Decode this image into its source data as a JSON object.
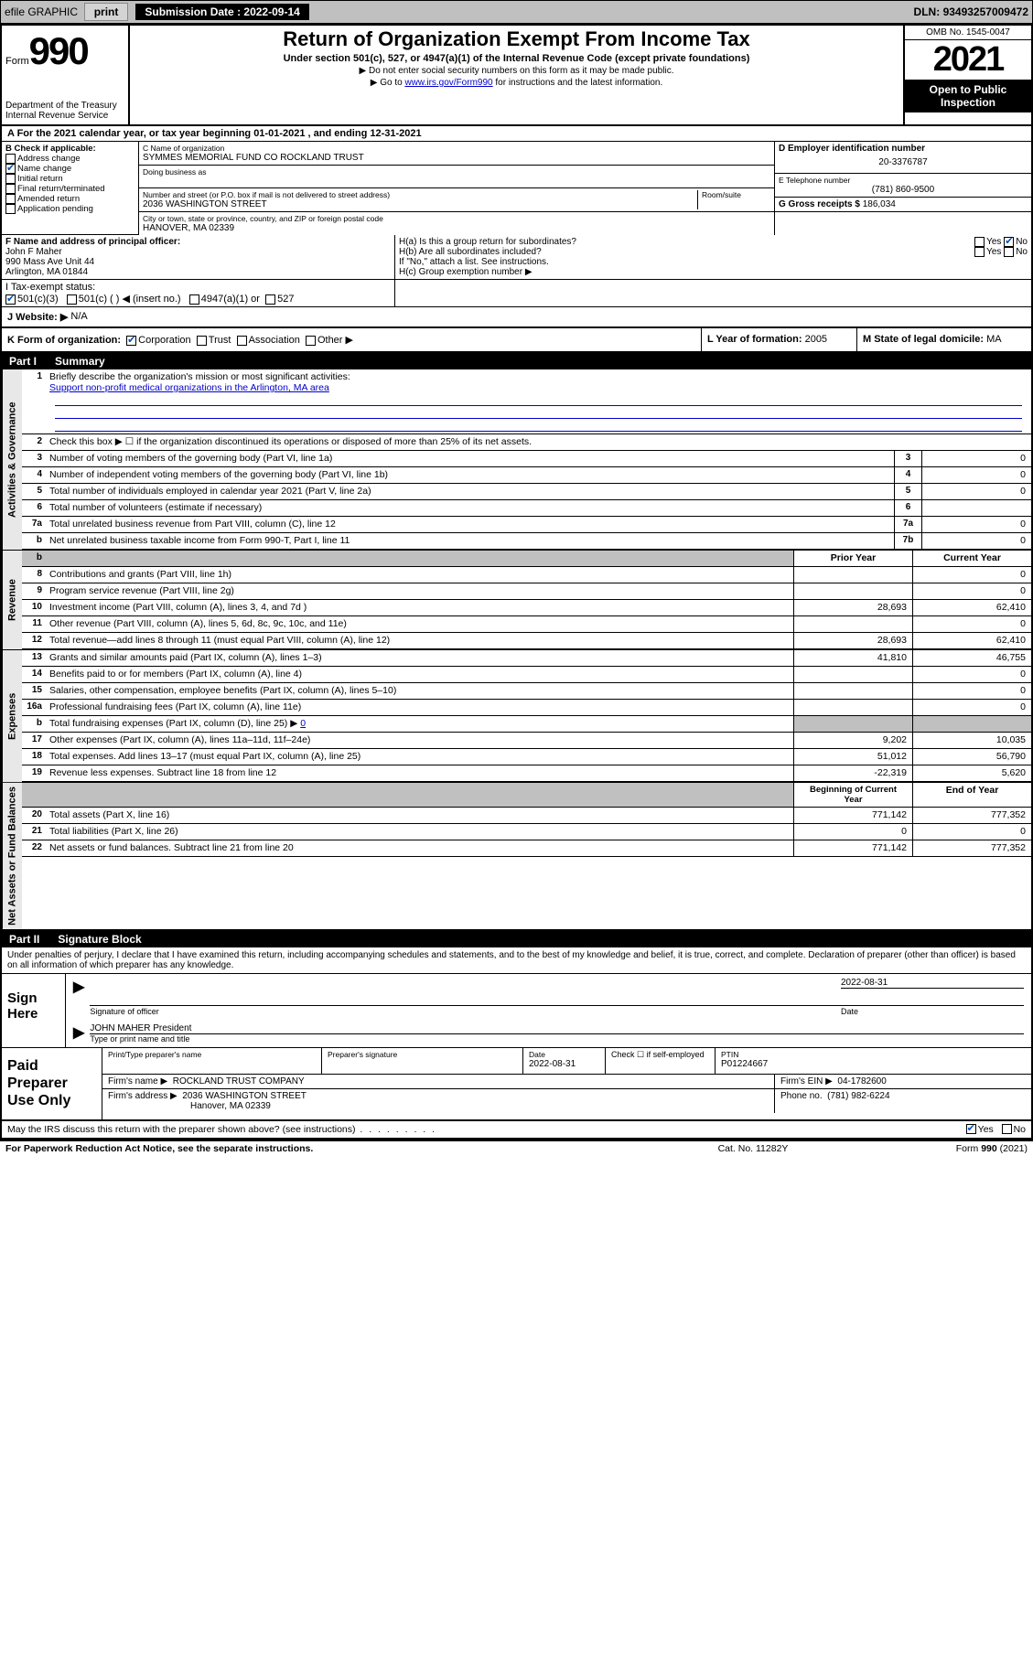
{
  "topbar": {
    "efile": "efile GRAPHIC",
    "print": "print",
    "sub_label": "Submission Date :",
    "sub_date": "2022-09-14",
    "dln_label": "DLN:",
    "dln": "93493257009472"
  },
  "header": {
    "form_word": "Form",
    "form_num": "990",
    "dept": "Department of the Treasury",
    "irs": "Internal Revenue Service",
    "title": "Return of Organization Exempt From Income Tax",
    "sub": "Under section 501(c), 527, or 4947(a)(1) of the Internal Revenue Code (except private foundations)",
    "note1": "▶ Do not enter social security numbers on this form as it may be made public.",
    "note2_pre": "▶ Go to ",
    "note2_link": "www.irs.gov/Form990",
    "note2_post": " for instructions and the latest information.",
    "omb": "OMB No. 1545-0047",
    "year": "2021",
    "open": "Open to Public Inspection"
  },
  "period": {
    "line": "A For the 2021 calendar year, or tax year beginning 01-01-2021   , and ending 12-31-2021"
  },
  "blockB": {
    "title": "B Check if applicable:",
    "addr": "Address change",
    "name": "Name change",
    "initial": "Initial return",
    "final": "Final return/terminated",
    "amended": "Amended return",
    "app": "Application pending"
  },
  "blockC": {
    "name_label": "C Name of organization",
    "name": "SYMMES MEMORIAL FUND CO ROCKLAND TRUST",
    "dba_label": "Doing business as",
    "street_label": "Number and street (or P.O. box if mail is not delivered to street address)",
    "room_label": "Room/suite",
    "street": "2036 WASHINGTON STREET",
    "city_label": "City or town, state or province, country, and ZIP or foreign postal code",
    "city": "HANOVER, MA  02339"
  },
  "blockD": {
    "ein_label": "D Employer identification number",
    "ein": "20-3376787",
    "phone_label": "E Telephone number",
    "phone": "(781) 860-9500",
    "gross_label": "G Gross receipts $",
    "gross": "186,034"
  },
  "blockF": {
    "label": "F  Name and address of principal officer:",
    "name": "John F Maher",
    "addr1": "990 Mass Ave Unit 44",
    "addr2": "Arlington, MA  01844"
  },
  "blockH": {
    "ha": "H(a)  Is this a group return for subordinates?",
    "hb": "H(b)  Are all subordinates included?",
    "hb_note": "If \"No,\" attach a list. See instructions.",
    "hc": "H(c)  Group exemption number ▶",
    "yes": "Yes",
    "no": "No"
  },
  "blockI": {
    "label": "I     Tax-exempt status:",
    "c3": "501(c)(3)",
    "c": "501(c) (  )",
    "insert": "◀ (insert no.)",
    "a4947": "4947(a)(1) or",
    "s527": "527"
  },
  "blockJ": {
    "label": "J    Website: ▶",
    "val": "N/A"
  },
  "blockK": {
    "label": "K Form of organization:",
    "corp": "Corporation",
    "trust": "Trust",
    "assoc": "Association",
    "other": "Other ▶"
  },
  "blockL": {
    "label": "L Year of formation:",
    "val": "2005"
  },
  "blockM": {
    "label": "M State of legal domicile:",
    "val": "MA"
  },
  "part1": {
    "num": "Part I",
    "title": "Summary"
  },
  "summary": {
    "line1_label": "Briefly describe the organization's mission or most significant activities:",
    "line1_val": "Support non-profit medical organizations in the Arlington, MA area",
    "line2": "Check this box ▶ ☐  if the organization discontinued its operations or disposed of more than 25% of its net assets.",
    "lines_gov": [
      {
        "n": "3",
        "d": "Number of voting members of the governing body (Part VI, line 1a)",
        "c": "3",
        "v": "0"
      },
      {
        "n": "4",
        "d": "Number of independent voting members of the governing body (Part VI, line 1b)",
        "c": "4",
        "v": "0"
      },
      {
        "n": "5",
        "d": "Total number of individuals employed in calendar year 2021 (Part V, line 2a)",
        "c": "5",
        "v": "0"
      },
      {
        "n": "6",
        "d": "Total number of volunteers (estimate if necessary)",
        "c": "6",
        "v": ""
      },
      {
        "n": "7a",
        "d": "Total unrelated business revenue from Part VIII, column (C), line 12",
        "c": "7a",
        "v": "0"
      },
      {
        "n": "b",
        "d": "Net unrelated business taxable income from Form 990-T, Part I, line 11",
        "c": "7b",
        "v": "0"
      }
    ],
    "col_prior": "Prior Year",
    "col_current": "Current Year",
    "revenue": [
      {
        "n": "8",
        "d": "Contributions and grants (Part VIII, line 1h)",
        "p": "",
        "c": "0"
      },
      {
        "n": "9",
        "d": "Program service revenue (Part VIII, line 2g)",
        "p": "",
        "c": "0"
      },
      {
        "n": "10",
        "d": "Investment income (Part VIII, column (A), lines 3, 4, and 7d )",
        "p": "28,693",
        "c": "62,410"
      },
      {
        "n": "11",
        "d": "Other revenue (Part VIII, column (A), lines 5, 6d, 8c, 9c, 10c, and 11e)",
        "p": "",
        "c": "0"
      },
      {
        "n": "12",
        "d": "Total revenue—add lines 8 through 11 (must equal Part VIII, column (A), line 12)",
        "p": "28,693",
        "c": "62,410"
      }
    ],
    "expenses": [
      {
        "n": "13",
        "d": "Grants and similar amounts paid (Part IX, column (A), lines 1–3)",
        "p": "41,810",
        "c": "46,755"
      },
      {
        "n": "14",
        "d": "Benefits paid to or for members (Part IX, column (A), line 4)",
        "p": "",
        "c": "0"
      },
      {
        "n": "15",
        "d": "Salaries, other compensation, employee benefits (Part IX, column (A), lines 5–10)",
        "p": "",
        "c": "0"
      },
      {
        "n": "16a",
        "d": "Professional fundraising fees (Part IX, column (A), line 11e)",
        "p": "",
        "c": "0"
      }
    ],
    "line_b": "Total fundraising expenses (Part IX, column (D), line 25) ▶",
    "line_b_val": "0",
    "expenses2": [
      {
        "n": "17",
        "d": "Other expenses (Part IX, column (A), lines 11a–11d, 11f–24e)",
        "p": "9,202",
        "c": "10,035"
      },
      {
        "n": "18",
        "d": "Total expenses. Add lines 13–17 (must equal Part IX, column (A), line 25)",
        "p": "51,012",
        "c": "56,790"
      },
      {
        "n": "19",
        "d": "Revenue less expenses. Subtract line 18 from line 12",
        "p": "-22,319",
        "c": "5,620"
      }
    ],
    "col_begin": "Beginning of Current Year",
    "col_end": "End of Year",
    "netassets": [
      {
        "n": "20",
        "d": "Total assets (Part X, line 16)",
        "p": "771,142",
        "c": "777,352"
      },
      {
        "n": "21",
        "d": "Total liabilities (Part X, line 26)",
        "p": "0",
        "c": "0"
      },
      {
        "n": "22",
        "d": "Net assets or fund balances. Subtract line 21 from line 20",
        "p": "771,142",
        "c": "777,352"
      }
    ]
  },
  "vlabels": {
    "gov": "Activities & Governance",
    "rev": "Revenue",
    "exp": "Expenses",
    "net": "Net Assets or Fund Balances"
  },
  "part2": {
    "num": "Part II",
    "title": "Signature Block"
  },
  "penalty": "Under penalties of perjury, I declare that I have examined this return, including accompanying schedules and statements, and to the best of my knowledge and belief, it is true, correct, and complete. Declaration of preparer (other than officer) is based on all information of which preparer has any knowledge.",
  "sign": {
    "here": "Sign Here",
    "sig_officer": "Signature of officer",
    "date": "Date",
    "date_val": "2022-08-31",
    "name": "JOHN MAHER President",
    "name_label": "Type or print name and title"
  },
  "prep": {
    "label": "Paid Preparer Use Only",
    "col1": "Print/Type preparer's name",
    "col2": "Preparer's signature",
    "col3": "Date",
    "date_val": "2022-08-31",
    "check": "Check ☐  if self-employed",
    "ptin_label": "PTIN",
    "ptin": "P01224667",
    "firm_name_label": "Firm's name    ▶",
    "firm_name": "ROCKLAND TRUST COMPANY",
    "firm_ein_label": "Firm's EIN ▶",
    "firm_ein": "04-1782600",
    "firm_addr_label": "Firm's address ▶",
    "firm_addr1": "2036 WASHINGTON STREET",
    "firm_addr2": "Hanover, MA  02339",
    "phone_label": "Phone no.",
    "phone": "(781) 982-6224"
  },
  "discuss": {
    "q": "May the IRS discuss this return with the preparer shown above? (see instructions)",
    "yes": "Yes",
    "no": "No"
  },
  "footer": {
    "left": "For Paperwork Reduction Act Notice, see the separate instructions.",
    "mid": "Cat. No. 11282Y",
    "right_a": "Form ",
    "right_b": "990",
    "right_c": " (2021)"
  }
}
